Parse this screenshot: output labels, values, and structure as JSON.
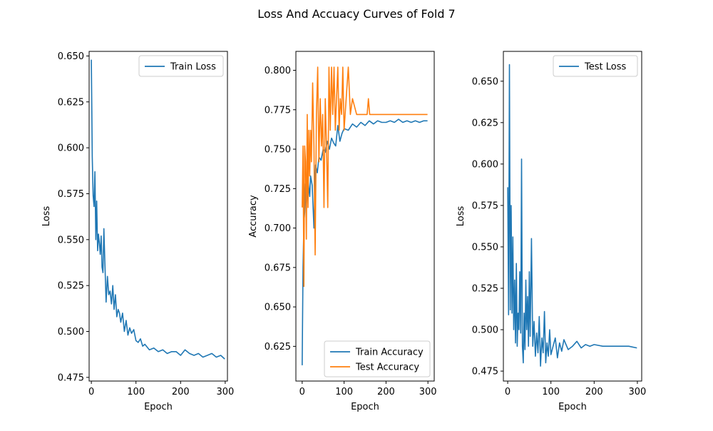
{
  "figure": {
    "title": "Loss And Accuacy Curves of Fold 7"
  },
  "chart_data": [
    {
      "type": "line",
      "xlabel": "Epoch",
      "ylabel": "Loss",
      "xlim": [
        -5,
        305
      ],
      "ylim": [
        0.473,
        0.6525
      ],
      "xticks": [
        0,
        100,
        200,
        300
      ],
      "yticks": [
        0.475,
        0.5,
        0.525,
        0.55,
        0.575,
        0.6,
        0.625,
        0.65
      ],
      "ytick_decimals": 3,
      "legend_position": "upper right",
      "series": [
        {
          "name": "Train Loss",
          "color": "#1f77b4",
          "x": [
            0,
            2,
            4,
            6,
            8,
            10,
            12,
            14,
            16,
            18,
            20,
            22,
            24,
            26,
            28,
            30,
            33,
            36,
            39,
            42,
            45,
            48,
            51,
            54,
            57,
            60,
            63,
            66,
            70,
            74,
            78,
            82,
            86,
            90,
            95,
            100,
            105,
            110,
            115,
            120,
            130,
            140,
            150,
            160,
            170,
            180,
            190,
            200,
            210,
            220,
            230,
            240,
            250,
            260,
            270,
            280,
            290,
            299
          ],
          "y": [
            0.648,
            0.595,
            0.574,
            0.568,
            0.587,
            0.55,
            0.571,
            0.544,
            0.553,
            0.548,
            0.542,
            0.552,
            0.535,
            0.532,
            0.556,
            0.54,
            0.516,
            0.53,
            0.52,
            0.522,
            0.515,
            0.525,
            0.512,
            0.52,
            0.508,
            0.512,
            0.51,
            0.505,
            0.51,
            0.5,
            0.506,
            0.498,
            0.502,
            0.499,
            0.501,
            0.495,
            0.494,
            0.496,
            0.492,
            0.493,
            0.49,
            0.491,
            0.489,
            0.49,
            0.488,
            0.489,
            0.489,
            0.487,
            0.49,
            0.488,
            0.487,
            0.488,
            0.486,
            0.487,
            0.488,
            0.486,
            0.487,
            0.485
          ]
        }
      ]
    },
    {
      "type": "line",
      "xlabel": "Epoch",
      "ylabel": "Accuracy",
      "xlim": [
        -15,
        315
      ],
      "ylim": [
        0.603,
        0.812
      ],
      "xticks": [
        0,
        100,
        200,
        300
      ],
      "yticks": [
        0.625,
        0.65,
        0.675,
        0.7,
        0.725,
        0.75,
        0.775,
        0.8
      ],
      "ytick_decimals": 3,
      "legend_position": "lower right",
      "series": [
        {
          "name": "Train Accuracy",
          "color": "#1f77b4",
          "x": [
            0,
            2,
            4,
            6,
            8,
            10,
            12,
            14,
            16,
            18,
            20,
            24,
            28,
            32,
            36,
            40,
            45,
            50,
            55,
            60,
            65,
            70,
            75,
            80,
            85,
            90,
            95,
            100,
            110,
            120,
            130,
            140,
            150,
            160,
            170,
            180,
            190,
            200,
            210,
            220,
            230,
            240,
            250,
            260,
            270,
            280,
            290,
            299
          ],
          "y": [
            0.613,
            0.675,
            0.703,
            0.71,
            0.728,
            0.715,
            0.72,
            0.73,
            0.725,
            0.72,
            0.733,
            0.727,
            0.7,
            0.74,
            0.735,
            0.745,
            0.743,
            0.75,
            0.748,
            0.755,
            0.75,
            0.757,
            0.754,
            0.752,
            0.765,
            0.755,
            0.76,
            0.763,
            0.762,
            0.766,
            0.764,
            0.767,
            0.765,
            0.768,
            0.766,
            0.768,
            0.767,
            0.767,
            0.768,
            0.767,
            0.769,
            0.767,
            0.768,
            0.767,
            0.768,
            0.767,
            0.768,
            0.768
          ]
        },
        {
          "name": "Test Accuracy",
          "color": "#ff7f0e",
          "x": [
            0,
            2,
            4,
            6,
            8,
            10,
            12,
            14,
            16,
            18,
            20,
            22,
            25,
            28,
            31,
            34,
            37,
            40,
            43,
            46,
            49,
            52,
            55,
            58,
            61,
            64,
            67,
            70,
            73,
            76,
            79,
            82,
            85,
            88,
            91,
            94,
            97,
            100,
            105,
            110,
            115,
            120,
            130,
            140,
            150,
            155,
            158,
            161,
            165,
            170,
            200,
            250,
            299
          ],
          "y": [
            0.713,
            0.752,
            0.663,
            0.752,
            0.742,
            0.693,
            0.772,
            0.713,
            0.762,
            0.733,
            0.762,
            0.742,
            0.792,
            0.752,
            0.683,
            0.772,
            0.802,
            0.742,
            0.782,
            0.752,
            0.772,
            0.713,
            0.782,
            0.752,
            0.713,
            0.802,
            0.762,
            0.802,
            0.772,
            0.802,
            0.762,
            0.782,
            0.802,
            0.762,
            0.782,
            0.772,
            0.802,
            0.762,
            0.782,
            0.802,
            0.772,
            0.782,
            0.772,
            0.772,
            0.772,
            0.772,
            0.782,
            0.772,
            0.772,
            0.772,
            0.772,
            0.772,
            0.772
          ]
        }
      ]
    },
    {
      "type": "line",
      "xlabel": "Epoch",
      "ylabel": "Loss",
      "xlim": [
        -10,
        310
      ],
      "ylim": [
        0.469,
        0.668
      ],
      "xticks": [
        0,
        100,
        200,
        300
      ],
      "yticks": [
        0.475,
        0.5,
        0.525,
        0.55,
        0.575,
        0.6,
        0.625,
        0.65
      ],
      "ytick_decimals": 3,
      "legend_position": "upper right",
      "series": [
        {
          "name": "Test Loss",
          "color": "#1f77b4",
          "x": [
            0,
            2,
            4,
            6,
            8,
            10,
            12,
            14,
            16,
            18,
            20,
            22,
            24,
            26,
            28,
            30,
            32,
            34,
            36,
            38,
            40,
            42,
            44,
            46,
            48,
            50,
            52,
            55,
            58,
            61,
            64,
            67,
            70,
            73,
            76,
            79,
            82,
            85,
            88,
            91,
            94,
            97,
            100,
            105,
            110,
            115,
            120,
            125,
            130,
            140,
            150,
            160,
            170,
            180,
            190,
            200,
            220,
            240,
            260,
            280,
            299
          ],
          "y": [
            0.586,
            0.509,
            0.66,
            0.512,
            0.575,
            0.51,
            0.556,
            0.5,
            0.53,
            0.492,
            0.54,
            0.49,
            0.51,
            0.5,
            0.535,
            0.498,
            0.603,
            0.49,
            0.48,
            0.51,
            0.488,
            0.53,
            0.5,
            0.52,
            0.49,
            0.535,
            0.496,
            0.555,
            0.49,
            0.505,
            0.484,
            0.498,
            0.486,
            0.508,
            0.478,
            0.495,
            0.486,
            0.511,
            0.48,
            0.492,
            0.484,
            0.5,
            0.485,
            0.49,
            0.495,
            0.483,
            0.492,
            0.487,
            0.494,
            0.488,
            0.49,
            0.493,
            0.489,
            0.491,
            0.49,
            0.491,
            0.49,
            0.49,
            0.49,
            0.49,
            0.489
          ]
        }
      ]
    }
  ]
}
